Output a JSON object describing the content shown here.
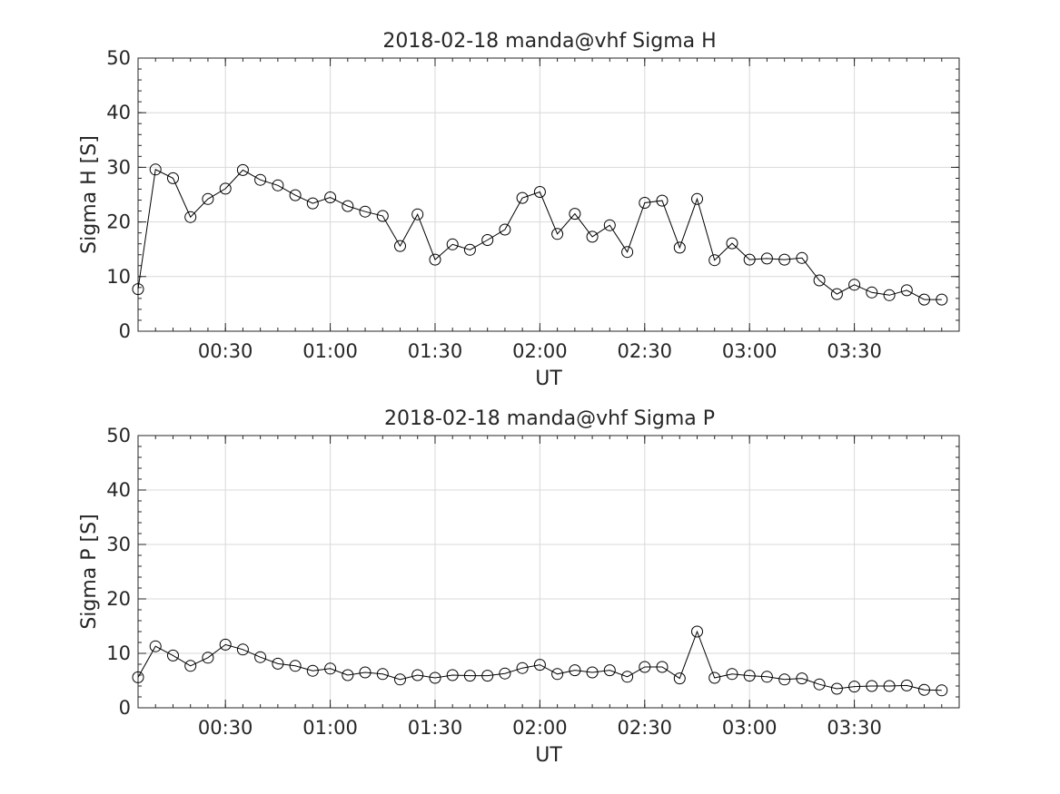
{
  "chart_data": [
    {
      "type": "line",
      "title": "2018-02-18  manda@vhf Sigma H",
      "xlabel": "UT",
      "ylabel": "Sigma H [S]",
      "ylim": [
        0,
        50
      ],
      "yticks": [
        "0",
        "10",
        "20",
        "30",
        "40",
        "50"
      ],
      "xlim": [
        "00:05",
        "04:00"
      ],
      "xticks": [
        "00:30",
        "01:00",
        "01:30",
        "02:00",
        "02:30",
        "03:00",
        "03:30"
      ],
      "grid": true,
      "marker": "circle",
      "x": [
        "00:05",
        "00:10",
        "00:15",
        "00:20",
        "00:25",
        "00:30",
        "00:35",
        "00:40",
        "00:45",
        "00:50",
        "00:55",
        "01:00",
        "01:05",
        "01:10",
        "01:15",
        "01:20",
        "01:25",
        "01:30",
        "01:35",
        "01:40",
        "01:45",
        "01:50",
        "01:55",
        "02:00",
        "02:05",
        "02:10",
        "02:15",
        "02:20",
        "02:25",
        "02:30",
        "02:35",
        "02:40",
        "02:45",
        "02:50",
        "02:55",
        "03:00",
        "03:05",
        "03:10",
        "03:15",
        "03:20",
        "03:25",
        "03:30",
        "03:35",
        "03:40",
        "03:45",
        "03:50",
        "03:55"
      ],
      "values": [
        7.7,
        29.6,
        28.0,
        20.9,
        24.2,
        26.1,
        29.5,
        27.7,
        26.7,
        24.9,
        23.4,
        24.5,
        22.9,
        21.9,
        21.1,
        15.6,
        21.4,
        13.1,
        15.9,
        14.9,
        16.7,
        18.6,
        24.4,
        25.5,
        17.8,
        21.5,
        17.3,
        19.4,
        14.5,
        23.5,
        23.9,
        15.3,
        24.2,
        13.0,
        16.1,
        13.1,
        13.3,
        13.1,
        13.4,
        9.3,
        6.8,
        8.5,
        7.1,
        6.6,
        7.5,
        5.8,
        5.8
      ]
    },
    {
      "type": "line",
      "title": "2018-02-18  manda@vhf Sigma P",
      "xlabel": "UT",
      "ylabel": "Sigma P [S]",
      "ylim": [
        0,
        50
      ],
      "yticks": [
        "0",
        "10",
        "20",
        "30",
        "40",
        "50"
      ],
      "xlim": [
        "00:05",
        "04:00"
      ],
      "xticks": [
        "00:30",
        "01:00",
        "01:30",
        "02:00",
        "02:30",
        "03:00",
        "03:30"
      ],
      "grid": true,
      "marker": "circle",
      "x": [
        "00:05",
        "00:10",
        "00:15",
        "00:20",
        "00:25",
        "00:30",
        "00:35",
        "00:40",
        "00:45",
        "00:50",
        "00:55",
        "01:00",
        "01:05",
        "01:10",
        "01:15",
        "01:20",
        "01:25",
        "01:30",
        "01:35",
        "01:40",
        "01:45",
        "01:50",
        "01:55",
        "02:00",
        "02:05",
        "02:10",
        "02:15",
        "02:20",
        "02:25",
        "02:30",
        "02:35",
        "02:40",
        "02:45",
        "02:50",
        "02:55",
        "03:00",
        "03:05",
        "03:10",
        "03:15",
        "03:20",
        "03:25",
        "03:30",
        "03:35",
        "03:40",
        "03:45",
        "03:50",
        "03:55"
      ],
      "values": [
        5.6,
        11.3,
        9.6,
        7.7,
        9.2,
        11.6,
        10.7,
        9.3,
        8.1,
        7.7,
        6.8,
        7.2,
        6.0,
        6.5,
        6.2,
        5.2,
        6.0,
        5.5,
        6.0,
        5.9,
        5.9,
        6.3,
        7.3,
        7.9,
        6.2,
        6.9,
        6.5,
        6.9,
        5.7,
        7.5,
        7.5,
        5.4,
        14.0,
        5.5,
        6.2,
        5.9,
        5.7,
        5.2,
        5.4,
        4.3,
        3.5,
        3.9,
        4.0,
        4.0,
        4.1,
        3.3,
        3.2
      ]
    }
  ],
  "colors": {
    "line": "#000000",
    "grid": "#d9d9d9",
    "axis": "#262626"
  }
}
